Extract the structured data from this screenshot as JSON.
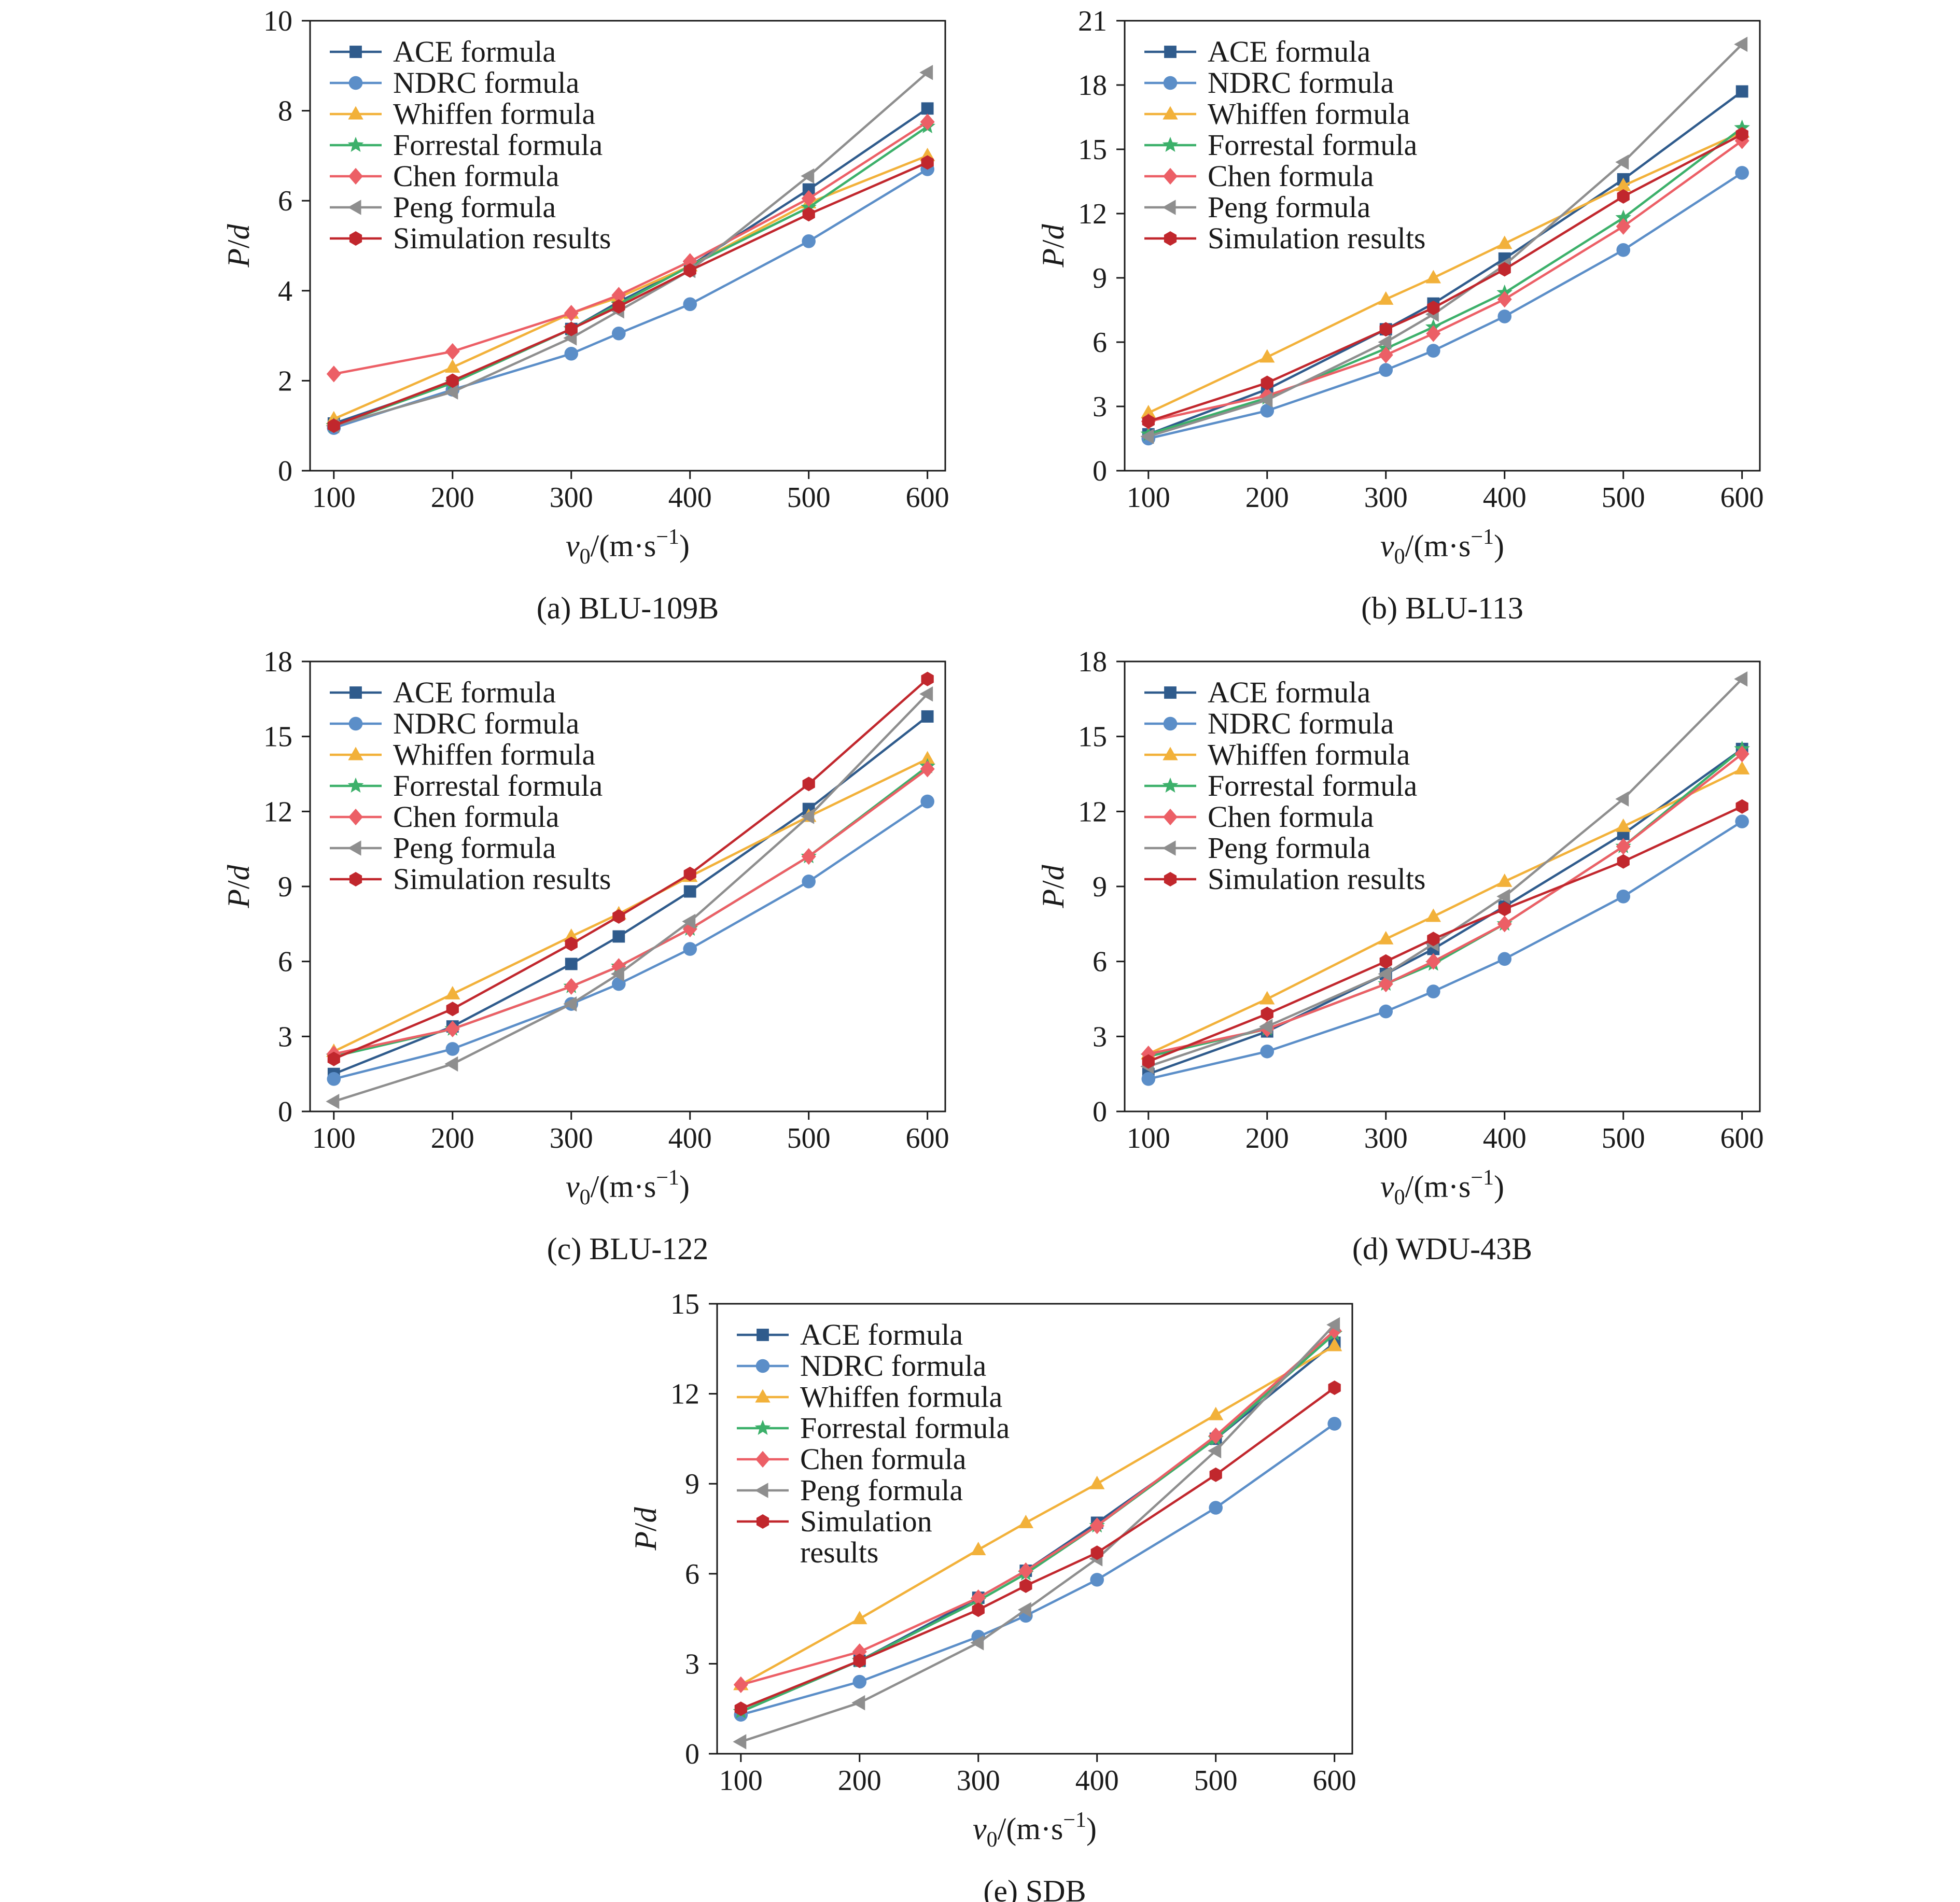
{
  "colors": {
    "ACE": "#2f5b8c",
    "NDRC": "#5b8ec8",
    "Whiffen": "#f2b13a",
    "Forrestal": "#3cb06a",
    "Chen": "#ec5f66",
    "Peng": "#8e8e8e",
    "Simulation": "#c1272d"
  },
  "series_meta": [
    {
      "key": "ACE",
      "name": "ACE formula",
      "marker": "square"
    },
    {
      "key": "NDRC",
      "name": "NDRC formula",
      "marker": "circle"
    },
    {
      "key": "Whiffen",
      "name": "Whiffen formula",
      "marker": "triangle-up"
    },
    {
      "key": "Forrestal",
      "name": "Forrestal formula",
      "marker": "star"
    },
    {
      "key": "Chen",
      "name": "Chen formula",
      "marker": "diamond"
    },
    {
      "key": "Peng",
      "name": "Peng formula",
      "marker": "triangle-left"
    },
    {
      "key": "Simulation",
      "name": "Simulation results",
      "marker": "hexagon"
    }
  ],
  "chart_data": [
    {
      "type": "line",
      "caption": "(a) BLU-109B",
      "xlabel": "v0/(m·s−1)",
      "ylabel": "P/d",
      "x": [
        100,
        200,
        300,
        340,
        400,
        500,
        600
      ],
      "xticks": [
        100,
        200,
        300,
        400,
        500,
        600
      ],
      "xlim": [
        80,
        615
      ],
      "ylim": [
        0,
        10
      ],
      "yticks": [
        0,
        2,
        4,
        6,
        8,
        10
      ],
      "legend": "top-left",
      "grid": false,
      "series": [
        {
          "key": "ACE",
          "name": "ACE formula",
          "values": [
            1.05,
            1.95,
            3.15,
            3.75,
            4.55,
            6.25,
            8.05
          ]
        },
        {
          "key": "NDRC",
          "name": "NDRC formula",
          "values": [
            0.95,
            1.8,
            2.6,
            3.05,
            3.7,
            5.1,
            6.7
          ]
        },
        {
          "key": "Whiffen",
          "name": "Whiffen formula",
          "values": [
            1.15,
            2.3,
            3.5,
            3.85,
            4.55,
            5.95,
            7.0
          ]
        },
        {
          "key": "Forrestal",
          "name": "Forrestal formula",
          "values": [
            1.0,
            1.95,
            3.15,
            3.7,
            4.55,
            5.85,
            7.65
          ]
        },
        {
          "key": "Chen",
          "name": "Chen formula",
          "values": [
            2.15,
            2.65,
            3.5,
            3.9,
            4.65,
            6.05,
            7.75
          ]
        },
        {
          "key": "Peng",
          "name": "Peng formula",
          "values": [
            1.0,
            1.75,
            2.95,
            3.55,
            4.45,
            6.55,
            8.85
          ]
        },
        {
          "key": "Simulation",
          "name": "Simulation results",
          "values": [
            1.0,
            2.0,
            3.15,
            3.65,
            4.45,
            5.7,
            6.85
          ]
        }
      ]
    },
    {
      "type": "line",
      "caption": "(b) BLU-113",
      "xlabel": "v0/(m·s−1)",
      "ylabel": "P/d",
      "x": [
        100,
        200,
        300,
        340,
        400,
        500,
        600
      ],
      "xticks": [
        100,
        200,
        300,
        400,
        500,
        600
      ],
      "xlim": [
        80,
        615
      ],
      "ylim": [
        0,
        21
      ],
      "yticks": [
        0,
        3,
        6,
        9,
        12,
        15,
        18,
        21
      ],
      "legend": "top-left",
      "grid": false,
      "series": [
        {
          "key": "ACE",
          "name": "ACE formula",
          "values": [
            1.7,
            3.8,
            6.6,
            7.8,
            9.9,
            13.6,
            17.7
          ]
        },
        {
          "key": "NDRC",
          "name": "NDRC formula",
          "values": [
            1.5,
            2.8,
            4.7,
            5.6,
            7.2,
            10.3,
            13.9
          ]
        },
        {
          "key": "Whiffen",
          "name": "Whiffen formula",
          "values": [
            2.7,
            5.3,
            8.0,
            9.0,
            10.6,
            13.3,
            15.8
          ]
        },
        {
          "key": "Forrestal",
          "name": "Forrestal formula",
          "values": [
            1.7,
            3.4,
            5.7,
            6.7,
            8.3,
            11.8,
            16.0
          ]
        },
        {
          "key": "Chen",
          "name": "Chen formula",
          "values": [
            2.3,
            3.5,
            5.4,
            6.4,
            8.0,
            11.4,
            15.4
          ]
        },
        {
          "key": "Peng",
          "name": "Peng formula",
          "values": [
            1.6,
            3.3,
            6.0,
            7.3,
            9.6,
            14.4,
            19.9
          ]
        },
        {
          "key": "Simulation",
          "name": "Simulation results",
          "values": [
            2.3,
            4.1,
            6.6,
            7.6,
            9.4,
            12.8,
            15.7
          ]
        }
      ]
    },
    {
      "type": "line",
      "caption": "(c) BLU-122",
      "xlabel": "v0/(m·s−1)",
      "ylabel": "P/d",
      "x": [
        100,
        200,
        300,
        340,
        400,
        500,
        600
      ],
      "xticks": [
        100,
        200,
        300,
        400,
        500,
        600
      ],
      "xlim": [
        80,
        615
      ],
      "ylim": [
        0,
        18
      ],
      "yticks": [
        0,
        3,
        6,
        9,
        12,
        15,
        18
      ],
      "legend": "top-left",
      "grid": false,
      "series": [
        {
          "key": "ACE",
          "name": "ACE formula",
          "values": [
            1.5,
            3.4,
            5.9,
            7.0,
            8.8,
            12.1,
            15.8
          ]
        },
        {
          "key": "NDRC",
          "name": "NDRC formula",
          "values": [
            1.3,
            2.5,
            4.3,
            5.1,
            6.5,
            9.2,
            12.4
          ]
        },
        {
          "key": "Whiffen",
          "name": "Whiffen formula",
          "values": [
            2.4,
            4.7,
            7.0,
            7.9,
            9.4,
            11.8,
            14.1
          ]
        },
        {
          "key": "Forrestal",
          "name": "Forrestal formula",
          "values": [
            2.2,
            3.3,
            5.0,
            5.8,
            7.3,
            10.2,
            13.8
          ]
        },
        {
          "key": "Chen",
          "name": "Chen formula",
          "values": [
            2.3,
            3.3,
            5.0,
            5.8,
            7.3,
            10.2,
            13.7
          ]
        },
        {
          "key": "Peng",
          "name": "Peng formula",
          "values": [
            0.4,
            1.9,
            4.3,
            5.5,
            7.6,
            11.8,
            16.7
          ]
        },
        {
          "key": "Simulation",
          "name": "Simulation results",
          "values": [
            2.1,
            4.1,
            6.7,
            7.8,
            9.5,
            13.1,
            17.3
          ]
        }
      ]
    },
    {
      "type": "line",
      "caption": "(d) WDU-43B",
      "xlabel": "v0/(m·s−1)",
      "ylabel": "P/d",
      "x": [
        100,
        200,
        300,
        340,
        400,
        500,
        600
      ],
      "xticks": [
        100,
        200,
        300,
        400,
        500,
        600
      ],
      "xlim": [
        80,
        615
      ],
      "ylim": [
        0,
        18
      ],
      "yticks": [
        0,
        3,
        6,
        9,
        12,
        15,
        18
      ],
      "legend": "top-left",
      "grid": false,
      "series": [
        {
          "key": "ACE",
          "name": "ACE formula",
          "values": [
            1.5,
            3.2,
            5.5,
            6.5,
            8.2,
            11.1,
            14.5
          ]
        },
        {
          "key": "NDRC",
          "name": "NDRC formula",
          "values": [
            1.3,
            2.4,
            4.0,
            4.8,
            6.1,
            8.6,
            11.6
          ]
        },
        {
          "key": "Whiffen",
          "name": "Whiffen formula",
          "values": [
            2.3,
            4.5,
            6.9,
            7.8,
            9.2,
            11.4,
            13.7
          ]
        },
        {
          "key": "Forrestal",
          "name": "Forrestal formula",
          "values": [
            2.2,
            3.3,
            5.1,
            5.9,
            7.5,
            10.6,
            14.5
          ]
        },
        {
          "key": "Chen",
          "name": "Chen formula",
          "values": [
            2.3,
            3.3,
            5.1,
            6.0,
            7.5,
            10.6,
            14.3
          ]
        },
        {
          "key": "Peng",
          "name": "Peng formula",
          "values": [
            1.8,
            3.4,
            5.5,
            6.7,
            8.6,
            12.5,
            17.3
          ]
        },
        {
          "key": "Simulation",
          "name": "Simulation results",
          "values": [
            2.0,
            3.9,
            6.0,
            6.9,
            8.1,
            10.0,
            12.2
          ]
        }
      ]
    },
    {
      "type": "line",
      "caption": "(e) SDB",
      "xlabel": "v0/(m·s−1)",
      "ylabel": "P/d",
      "x": [
        100,
        200,
        300,
        340,
        400,
        500,
        600
      ],
      "xticks": [
        100,
        200,
        300,
        400,
        500,
        600
      ],
      "xlim": [
        80,
        615
      ],
      "ylim": [
        0,
        15
      ],
      "yticks": [
        0,
        3,
        6,
        9,
        12,
        15
      ],
      "legend": "top-left",
      "grid": false,
      "series": [
        {
          "key": "ACE",
          "name": "ACE formula",
          "values": [
            1.4,
            3.1,
            5.2,
            6.1,
            7.7,
            10.5,
            13.7
          ]
        },
        {
          "key": "NDRC",
          "name": "NDRC formula",
          "values": [
            1.3,
            2.4,
            3.9,
            4.6,
            5.8,
            8.2,
            11.0
          ]
        },
        {
          "key": "Whiffen",
          "name": "Whiffen formula",
          "values": [
            2.3,
            4.5,
            6.8,
            7.7,
            9.0,
            11.3,
            13.6
          ]
        },
        {
          "key": "Forrestal",
          "name": "Forrestal formula",
          "values": [
            1.4,
            3.1,
            5.1,
            6.0,
            7.6,
            10.5,
            14.0
          ]
        },
        {
          "key": "Chen",
          "name": "Chen formula",
          "values": [
            2.3,
            3.4,
            5.2,
            6.1,
            7.6,
            10.6,
            14.1
          ]
        },
        {
          "key": "Peng",
          "name": "Peng formula",
          "values": [
            0.4,
            1.7,
            3.7,
            4.8,
            6.5,
            10.1,
            14.3
          ]
        },
        {
          "key": "Simulation",
          "name": "Simulation results",
          "values": [
            1.5,
            3.1,
            4.8,
            5.6,
            6.7,
            9.3,
            12.2
          ]
        }
      ]
    }
  ]
}
